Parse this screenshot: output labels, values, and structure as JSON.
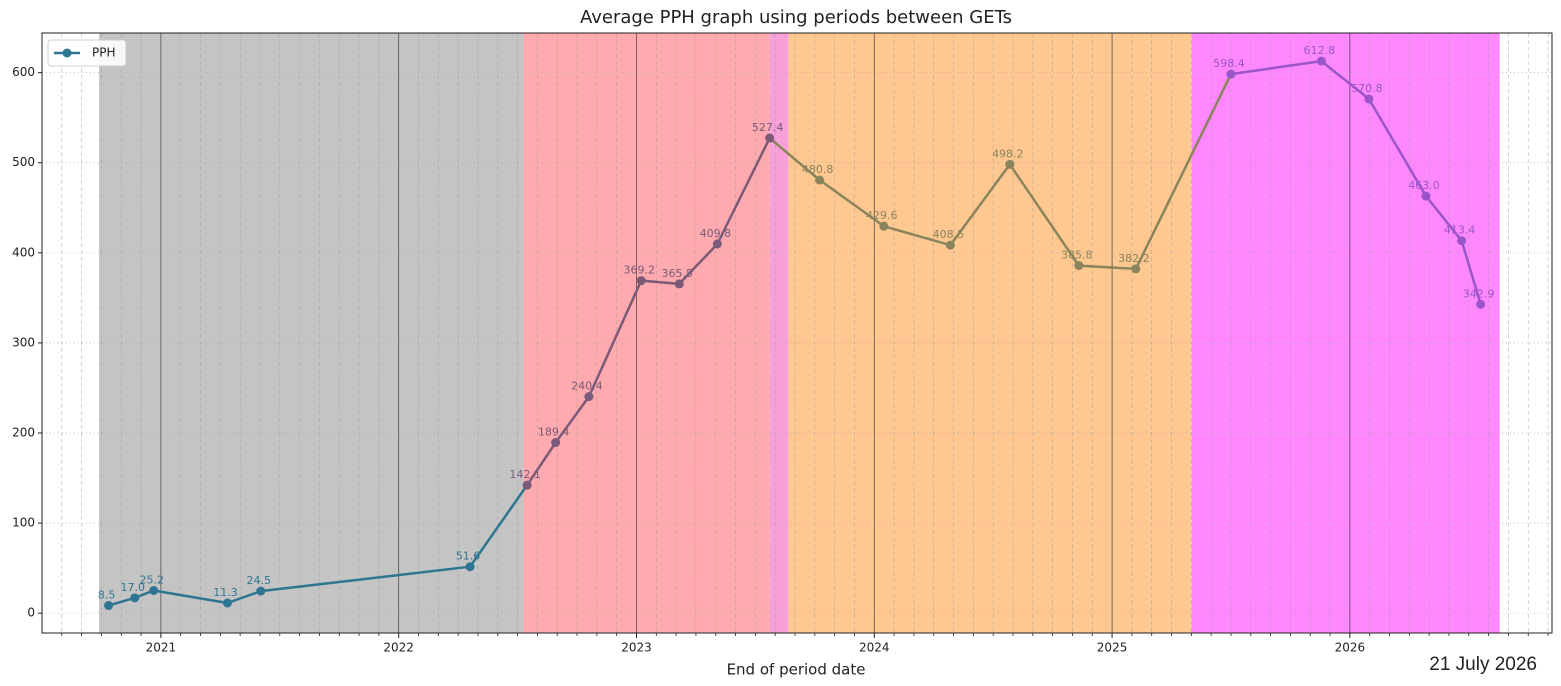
{
  "chart_data": {
    "type": "line",
    "title": "Average PPH graph using periods between GETs",
    "x_label": "End of period date",
    "date_note": "21 July 2026",
    "x": [
      2020.78,
      2020.89,
      2020.97,
      2021.28,
      2021.42,
      2022.3,
      2022.54,
      2022.66,
      2022.8,
      2023.02,
      2023.18,
      2023.34,
      2023.56,
      2023.77,
      2024.04,
      2024.32,
      2024.57,
      2024.86,
      2025.1,
      2025.5,
      2025.88,
      2026.08,
      2026.32,
      2026.47,
      2026.55
    ],
    "series": [
      {
        "name": "PPH",
        "color": "#2e7591",
        "values": [
          8.5,
          17.0,
          25.2,
          11.3,
          24.5,
          51.6,
          142.1,
          189.4,
          240.4,
          369.2,
          365.5,
          409.8,
          527.4,
          480.8,
          429.6,
          408.5,
          498.2,
          385.8,
          382.2,
          598.4,
          612.8,
          570.8,
          463.0,
          413.4,
          342.9
        ],
        "value_labels": [
          "8.5",
          "17.0",
          "25.2",
          "11.3",
          "24.5",
          "51.6",
          "142.1",
          "189.4",
          "240.4",
          "369.2",
          "365.5",
          "409.8",
          "527.4",
          "480.8",
          "429.6",
          "408.5",
          "498.2",
          "385.8",
          "382.2",
          "598.4",
          "612.8",
          "570.8",
          "463.0",
          "413.4",
          "342.9"
        ]
      }
    ],
    "regions": [
      {
        "start": 2020.74,
        "end": 2022.525,
        "color": "#c4c4c4",
        "line_color": "#2e7591"
      },
      {
        "start": 2022.525,
        "end": 2023.56,
        "color": "#ffaaaf",
        "line_color": "#7a5a78"
      },
      {
        "start": 2023.56,
        "end": 2023.64,
        "color": "#f8a0d8",
        "line_color": "#7a5a78"
      },
      {
        "start": 2023.64,
        "end": 2025.336,
        "color": "#ffc890",
        "line_color": "#8a845c"
      },
      {
        "start": 2025.336,
        "end": 2026.63,
        "color": "#ff88ff",
        "line_color": "#9a55c8"
      }
    ],
    "xlim": [
      2020.5,
      2026.85
    ],
    "xticks": [
      2021,
      2022,
      2023,
      2024,
      2025,
      2026
    ],
    "ylim": [
      -22,
      644
    ],
    "yticks": [
      0,
      100,
      200,
      300,
      400,
      500,
      600
    ],
    "grid": true,
    "legend": "upper left"
  }
}
